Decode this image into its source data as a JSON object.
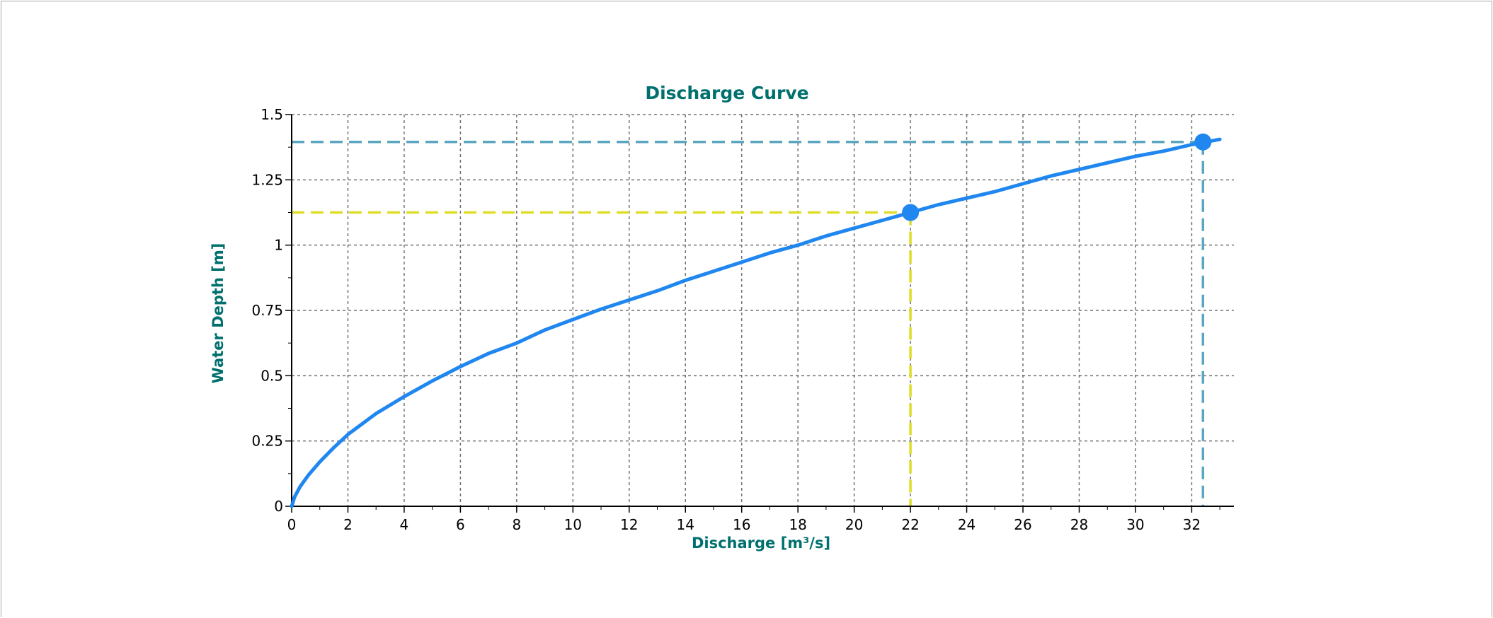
{
  "chart_data": {
    "type": "line",
    "title": "Discharge Curve",
    "xlabel": "Discharge [m³/s]",
    "ylabel": "Water Depth [m]",
    "xlim": [
      0,
      33.5
    ],
    "ylim": [
      0,
      1.5
    ],
    "x_ticks": [
      "0",
      "2",
      "4",
      "6",
      "8",
      "10",
      "12",
      "14",
      "16",
      "18",
      "20",
      "22",
      "24",
      "26",
      "28",
      "30",
      "32"
    ],
    "y_ticks": [
      "0",
      "0.25",
      "0.5",
      "0.75",
      "1",
      "1.25",
      "1.5"
    ],
    "grid": true,
    "series": [
      {
        "color": "#1f87ef",
        "x": [
          0,
          0.1,
          0.3,
          0.6,
          1.0,
          1.5,
          2.0,
          3.0,
          4.0,
          5.0,
          6.0,
          7.0,
          8.0,
          9.0,
          10.0,
          11.0,
          12.0,
          13.0,
          14.0,
          15.0,
          16.0,
          17.0,
          18.0,
          19.0,
          20.0,
          21.0,
          22.0,
          23.0,
          24.0,
          25.0,
          26.0,
          27.0,
          28.0,
          29.0,
          30.0,
          31.0,
          32.0,
          32.5,
          33.0
        ],
        "y": [
          0,
          0.035,
          0.075,
          0.12,
          0.17,
          0.225,
          0.275,
          0.355,
          0.42,
          0.48,
          0.535,
          0.585,
          0.625,
          0.675,
          0.715,
          0.755,
          0.79,
          0.825,
          0.865,
          0.9,
          0.935,
          0.97,
          1.0,
          1.035,
          1.065,
          1.095,
          1.125,
          1.155,
          1.18,
          1.205,
          1.235,
          1.265,
          1.29,
          1.315,
          1.34,
          1.36,
          1.385,
          1.395,
          1.405
        ]
      }
    ],
    "markers": [
      {
        "x": 22.0,
        "y": 1.125,
        "color": "#1f87ef",
        "guide_color": "#dede28"
      },
      {
        "x": 32.4,
        "y": 1.395,
        "color": "#1f87ef",
        "guide_color": "#5aa5bf"
      }
    ]
  }
}
